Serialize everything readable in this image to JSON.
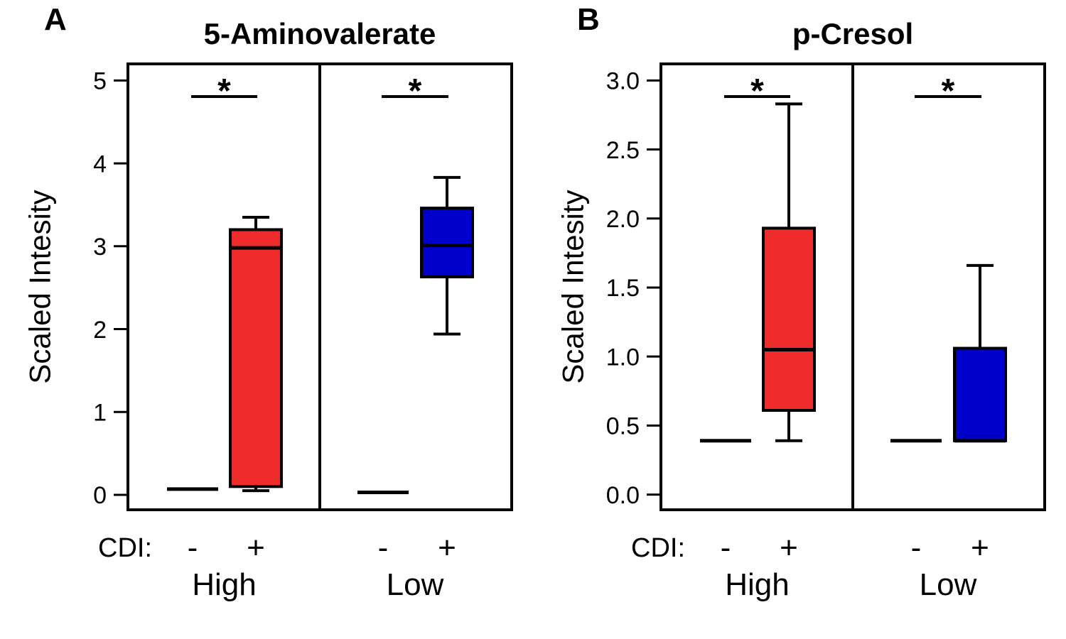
{
  "chart_data": [
    {
      "type": "box",
      "panel_letter": "A",
      "title": "5-Aminovalerate",
      "ylabel": "Scaled Intesity",
      "ylim": [
        -0.18,
        5.2
      ],
      "yticks": [
        0,
        1,
        2,
        3,
        4,
        5
      ],
      "ytick_labels": [
        "0",
        "1",
        "2",
        "3",
        "4",
        "5"
      ],
      "condition_label": "CDI:",
      "groups": [
        {
          "label": "High",
          "significance": "*",
          "boxes": [
            {
              "cdi": "-",
              "color": "#ffffff",
              "whisker_low": 0.07,
              "q1": 0.07,
              "median": 0.07,
              "q3": 0.07,
              "whisker_high": 0.07
            },
            {
              "cdi": "+",
              "color": "#ee2c2c",
              "whisker_low": 0.05,
              "q1": 0.1,
              "median": 2.98,
              "q3": 3.2,
              "whisker_high": 3.35
            }
          ]
        },
        {
          "label": "Low",
          "significance": "*",
          "boxes": [
            {
              "cdi": "-",
              "color": "#ffffff",
              "whisker_low": 0.03,
              "q1": 0.03,
              "median": 0.03,
              "q3": 0.03,
              "whisker_high": 0.03
            },
            {
              "cdi": "+",
              "color": "#0000cd",
              "whisker_low": 1.94,
              "q1": 2.63,
              "median": 3.01,
              "q3": 3.46,
              "whisker_high": 3.83
            }
          ]
        }
      ]
    },
    {
      "type": "box",
      "panel_letter": "B",
      "title": "p-Cresol",
      "ylabel": "Scaled Intesity",
      "ylim": [
        -0.11,
        3.12
      ],
      "yticks": [
        0.0,
        0.5,
        1.0,
        1.5,
        2.0,
        2.5,
        3.0
      ],
      "ytick_labels": [
        "0.0",
        "0.5",
        "1.0",
        "1.5",
        "2.0",
        "2.5",
        "3.0"
      ],
      "condition_label": "CDI:",
      "groups": [
        {
          "label": "High",
          "significance": "*",
          "boxes": [
            {
              "cdi": "-",
              "color": "#ffffff",
              "whisker_low": 0.39,
              "q1": 0.39,
              "median": 0.39,
              "q3": 0.39,
              "whisker_high": 0.39
            },
            {
              "cdi": "+",
              "color": "#ee2c2c",
              "whisker_low": 0.39,
              "q1": 0.61,
              "median": 1.05,
              "q3": 1.93,
              "whisker_high": 2.83
            }
          ]
        },
        {
          "label": "Low",
          "significance": "*",
          "boxes": [
            {
              "cdi": "-",
              "color": "#ffffff",
              "whisker_low": 0.39,
              "q1": 0.39,
              "median": 0.39,
              "q3": 0.39,
              "whisker_high": 0.39
            },
            {
              "cdi": "+",
              "color": "#0000cd",
              "whisker_low": 0.39,
              "q1": 0.39,
              "median": 0.39,
              "q3": 1.06,
              "whisker_high": 1.66
            }
          ]
        }
      ]
    }
  ]
}
